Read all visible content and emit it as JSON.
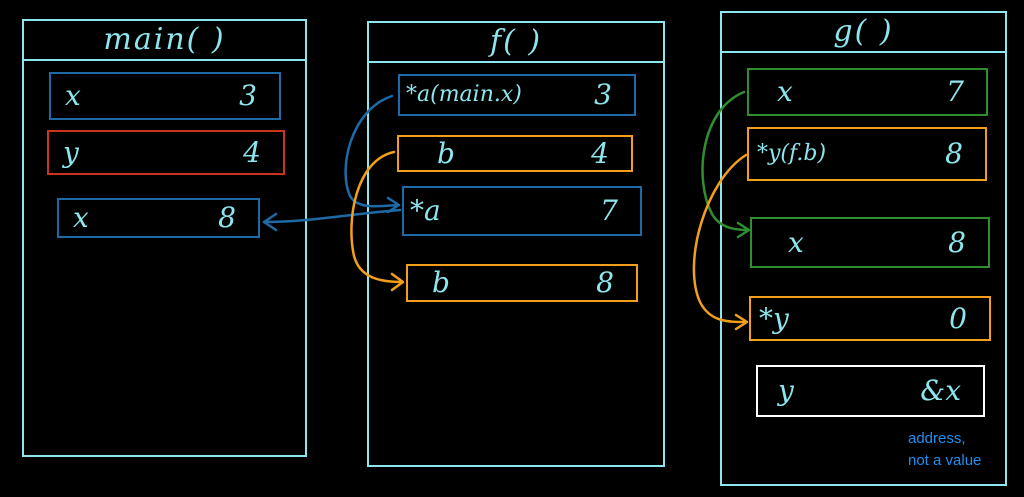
{
  "frames": {
    "main": {
      "title": "main( )",
      "cells": [
        {
          "name": "x",
          "value": "3"
        },
        {
          "name": "y",
          "value": "4"
        },
        {
          "name": "x",
          "value": "8"
        }
      ]
    },
    "f": {
      "title": "f( )",
      "cells": [
        {
          "name": "*a(main.x)",
          "value": "3"
        },
        {
          "name": "b",
          "value": "4"
        },
        {
          "name": "*a",
          "value": "7"
        },
        {
          "name": "b",
          "value": "8"
        }
      ]
    },
    "g": {
      "title": "g( )",
      "cells": [
        {
          "name": "x",
          "value": "7"
        },
        {
          "name": "*y(f.b)",
          "value": "8"
        },
        {
          "name": "x",
          "value": "8"
        },
        {
          "name": "*y",
          "value": "0"
        },
        {
          "name": "y",
          "value": "&x"
        }
      ]
    }
  },
  "note": {
    "line1": "address,",
    "line2": "not a value"
  },
  "colors": {
    "frame": "#8de6ee",
    "blue": "#1d6aa6",
    "red": "#c9341f",
    "orange": "#f29f1a",
    "green": "#2f8f2f",
    "white": "#ffffff",
    "note": "#1e90f0"
  }
}
